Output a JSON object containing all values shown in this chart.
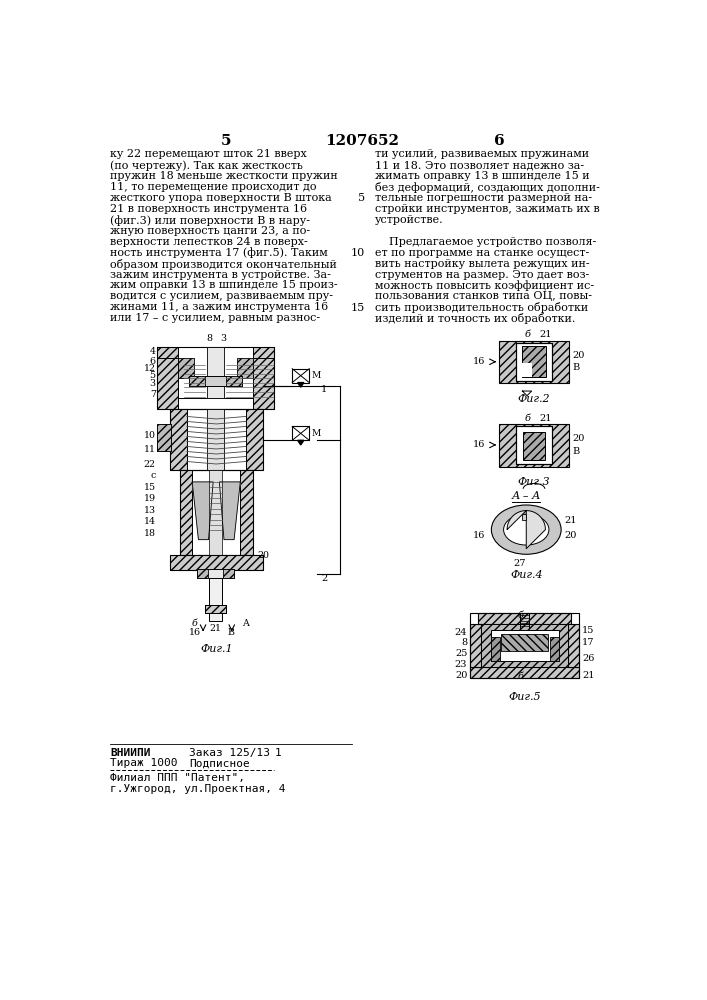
{
  "page_number_left": "5",
  "patent_number": "1207652",
  "page_number_right": "6",
  "left_column_text": [
    "ку 22 перемещают шток 21 вверх",
    "(по чертежу). Так как жесткость",
    "пружин 18 меньше жесткости пружин",
    "11, то перемещение происходит до",
    "жесткого упора поверхности В штока",
    "21 в поверхность инструмента 16",
    "(фиг.3) или поверхности В в нару-",
    "жную поверхность цанги 23, а по-",
    "верхности лепестков 24 в поверх-",
    "ность инструмента 17 (фиг.5). Таким",
    "образом производится окончательный",
    "зажим инструмента в устройстве. За-",
    "жим оправки 13 в шпинделе 15 произ-",
    "водится с усилием, развиваемым пру-",
    "жинами 11, а зажим инструмента 16",
    "или 17 – с усилием, равным разнос-"
  ],
  "right_column_text": [
    "ти усилий, развиваемых пружинами",
    "11 и 18. Это позволяет надежно за-",
    "жимать оправку 13 в шпинделе 15 и",
    "без деформаций, создающих дополни-",
    "тельные погрешности размерной на-",
    "стройки инструментов, зажимать их в",
    "устройстве.",
    "",
    "    Предлагаемое устройство позволя-",
    "ет по программе на станке осущест-",
    "вить настройку вылета режущих ин-",
    "струментов на размер. Это дает воз-",
    "можность повысить коэффициент ис-",
    "пользования станков типа ОЦ, повы-",
    "сить производительность обработки",
    "изделий и точность их обработки."
  ],
  "fig1_label": "Фиг.1",
  "fig2_label": "Фиг.2",
  "fig3_label": "Фиг.3",
  "fig4_label": "Фиг.4",
  "fig5_label": "Фиг.5",
  "footer_org": "ВНИИПИ",
  "footer_order": "Заказ 125/13",
  "footer_suffix": "1",
  "footer_copies": "Тираж 1000",
  "footer_sub": "Подписное",
  "footer_line2": "Филиал ППП \"Патент\",",
  "footer_line3": "г.Ужгород, ул.Проектная, 4",
  "background_color": "#ffffff",
  "text_color": "#000000",
  "line_color": "#000000"
}
